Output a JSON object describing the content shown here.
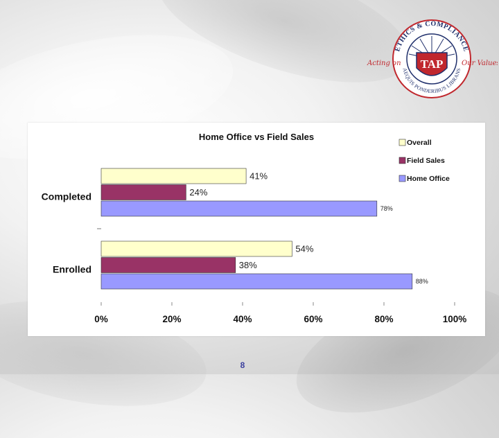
{
  "logo": {
    "ring_top_text": "ETHICS & COMPLIANCE",
    "ring_bottom_text": "AEQUIS PONDERIBUS LIBRANS",
    "left_script": "Acting on",
    "right_script": "Our Values",
    "monogram": "TAP",
    "colors": {
      "red": "#c0272d",
      "navy": "#1f2f6b"
    }
  },
  "page": {
    "number": "8"
  },
  "chart_data": {
    "type": "bar",
    "orientation": "horizontal",
    "title": "Home Office vs Field Sales",
    "categories": [
      "Completed",
      "Enrolled"
    ],
    "series": [
      {
        "name": "Overall",
        "color": "#ffffcc",
        "values": [
          41,
          54
        ],
        "labels": [
          "41%",
          "54%"
        ]
      },
      {
        "name": "Field Sales",
        "color": "#993366",
        "values": [
          24,
          38
        ],
        "labels": [
          "24%",
          "38%"
        ]
      },
      {
        "name": "Home Office",
        "color": "#9999ff",
        "values": [
          78,
          88
        ],
        "labels": [
          "78%",
          "88%"
        ]
      }
    ],
    "xlim": [
      0,
      100
    ],
    "x_ticks": [
      "0%",
      "20%",
      "40%",
      "60%",
      "80%",
      "100%"
    ],
    "xlabel": "",
    "ylabel": "",
    "grid": false,
    "legend_position": "top-right"
  }
}
